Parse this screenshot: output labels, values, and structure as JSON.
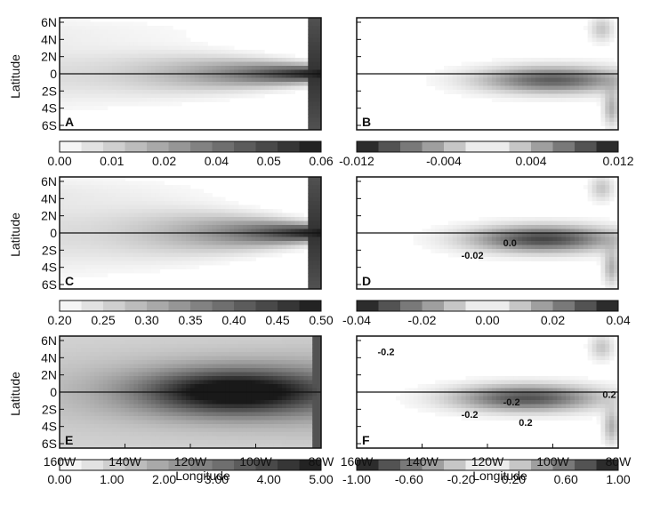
{
  "axes": {
    "latitude_label": "Latitude",
    "longitude_label": "Longitude",
    "lat_ticks": [
      "6N",
      "4N",
      "2N",
      "0",
      "2S",
      "4S",
      "6S"
    ],
    "lon_ticks": [
      "160W",
      "140W",
      "120W",
      "100W",
      "80W"
    ]
  },
  "colors": {
    "ink": "#111111",
    "background": "#ffffff"
  },
  "chart_data": [
    {
      "panel": "A",
      "type": "heatmap",
      "lat_range": [
        -6.5,
        6.5
      ],
      "lon_range": [
        -160,
        -80
      ],
      "colorbar": {
        "ticks": [
          "0.00",
          "0.01",
          "0.02",
          "0.04",
          "0.05",
          "0.06"
        ],
        "range": [
          0,
          0.06
        ],
        "levels": 12,
        "diverging": false
      },
      "pattern": {
        "kind": "cold_tongue",
        "peak_lon": -80,
        "spread": 0.45
      }
    },
    {
      "panel": "B",
      "type": "heatmap",
      "lat_range": [
        -6.5,
        6.5
      ],
      "lon_range": [
        -160,
        -80
      ],
      "colorbar": {
        "ticks": [
          "-0.012",
          "-0.004",
          "0.004",
          "0.012"
        ],
        "range": [
          -0.012,
          0.012
        ],
        "levels": 12,
        "diverging": true
      },
      "pattern": {
        "kind": "anomaly",
        "center_lon": -100,
        "strength": 0.7
      }
    },
    {
      "panel": "C",
      "type": "heatmap",
      "lat_range": [
        -6.5,
        6.5
      ],
      "lon_range": [
        -160,
        -80
      ],
      "colorbar": {
        "ticks": [
          "0.20",
          "0.25",
          "0.30",
          "0.35",
          "0.40",
          "0.45",
          "0.50"
        ],
        "range": [
          0.2,
          0.5
        ],
        "levels": 12,
        "diverging": false
      },
      "pattern": {
        "kind": "cold_tongue",
        "peak_lon": -82,
        "spread": 0.6
      }
    },
    {
      "panel": "D",
      "type": "heatmap",
      "lat_range": [
        -6.5,
        6.5
      ],
      "lon_range": [
        -160,
        -80
      ],
      "colorbar": {
        "ticks": [
          "-0.04",
          "-0.02",
          "0.00",
          "0.02",
          "0.04"
        ],
        "range": [
          -0.04,
          0.04
        ],
        "levels": 12,
        "diverging": true
      },
      "pattern": {
        "kind": "anomaly",
        "center_lon": -103,
        "strength": 0.8
      },
      "contour_labels": [
        "-0.02",
        "0.0"
      ]
    },
    {
      "panel": "E",
      "type": "heatmap",
      "lat_range": [
        -6.5,
        6.5
      ],
      "lon_range": [
        -160,
        -80
      ],
      "colorbar": {
        "ticks": [
          "0.00",
          "1.00",
          "2.00",
          "3.00",
          "4.00",
          "5.00"
        ],
        "range": [
          0,
          5
        ],
        "levels": 12,
        "diverging": false
      },
      "pattern": {
        "kind": "core",
        "peak_lon": -107,
        "spread": 1.0
      }
    },
    {
      "panel": "F",
      "type": "heatmap",
      "lat_range": [
        -6.5,
        6.5
      ],
      "lon_range": [
        -160,
        -80
      ],
      "colorbar": {
        "ticks": [
          "-1.00",
          "-0.60",
          "-0.20",
          "0.20",
          "0.60",
          "1.00"
        ],
        "range": [
          -1,
          1
        ],
        "levels": 12,
        "diverging": true
      },
      "pattern": {
        "kind": "anomaly",
        "center_lon": -108,
        "strength": 0.75
      },
      "contour_labels": [
        "-0.2",
        "-0.2",
        "-0.2",
        "0.2",
        "0.2"
      ]
    }
  ]
}
